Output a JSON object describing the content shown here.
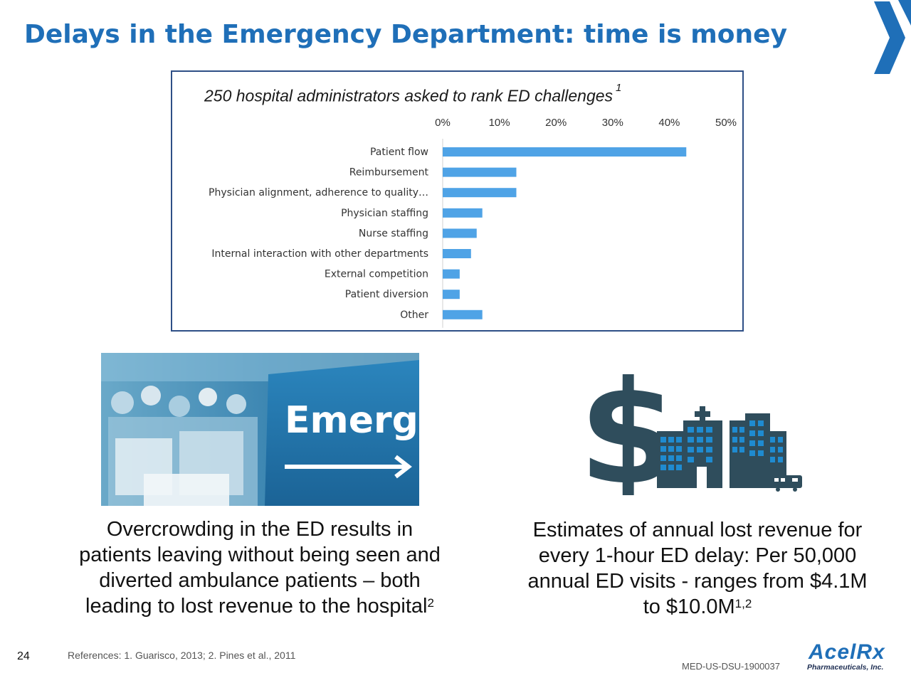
{
  "slide": {
    "title": "Delays in the Emergency Department: time is money",
    "page_number": "24",
    "references": "References: 1. Guarisco, 2013;  2. Pines et al., 2011",
    "doc_code": "MED-US-DSU-1900037"
  },
  "chart_data": {
    "type": "bar",
    "orientation": "horizontal",
    "title": "250 hospital administrators asked to rank ED challenges",
    "title_superscript": "1",
    "categories": [
      "Patient flow",
      "Reimbursement",
      "Physician alignment, adherence to quality…",
      "Physician staffing",
      "Nurse staffing",
      "Internal interaction with other departments",
      "External competition",
      "Patient diversion",
      "Other"
    ],
    "values": [
      43,
      13,
      13,
      7,
      6,
      5,
      3,
      3,
      7
    ],
    "unit": "%",
    "xlim": [
      0,
      50
    ],
    "x_ticks": [
      "0%",
      "10%",
      "20%",
      "30%",
      "40%",
      "50%"
    ],
    "x_axis_position": "top",
    "grid": false,
    "legend": "none",
    "bar_color": "#4fa3e6"
  },
  "left_caption": {
    "lines": [
      "Overcrowding in the ED results in",
      "patients leaving without being seen and",
      "diverted ambulance patients – both",
      "leading to lost revenue to the hospital"
    ],
    "superscript": "2"
  },
  "right_caption": {
    "lines": [
      "Estimates of annual lost revenue for",
      "every 1-hour ED delay: Per 50,000",
      "annual ED visits - ranges from $4.1M",
      "to $10.0M"
    ],
    "superscript": "1,2"
  },
  "photo": {
    "sign_text": "Emergen"
  },
  "brand": {
    "name": "AcelRx",
    "tagline": "Pharmaceuticals, Inc."
  },
  "colors": {
    "title_blue": "#1f6fb8",
    "frame_navy": "#2e4f86",
    "bar_blue": "#4fa3e6",
    "icon_slate": "#2f4d5c",
    "window_blue": "#1f8bd0"
  }
}
